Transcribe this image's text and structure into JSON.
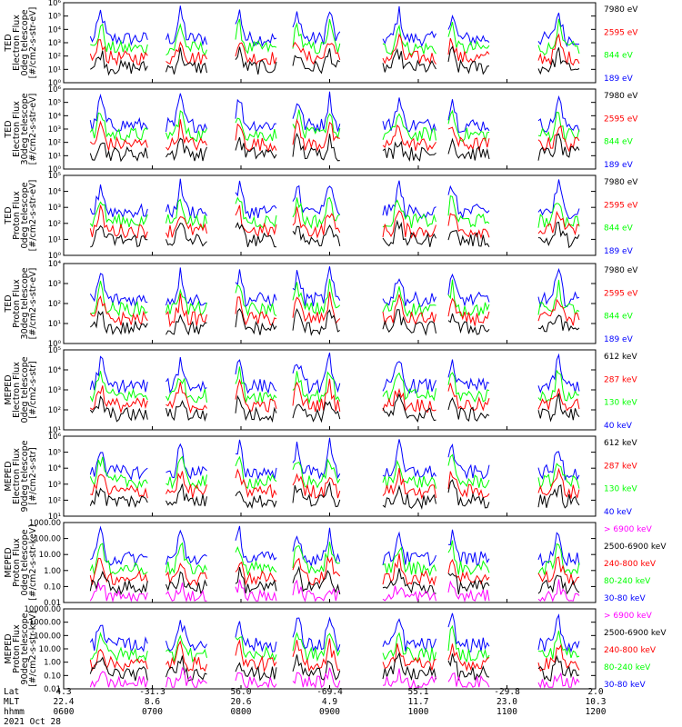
{
  "colors": {
    "blue": "#0000ff",
    "red": "#ff0000",
    "green": "#00ff00",
    "black": "#000000",
    "magenta": "#ff00ff"
  },
  "chart_data": [
    {
      "type": "line",
      "ylabel": [
        "TED",
        "Electron Flux",
        "0deg telescope",
        "[#/cm2-s-str-eV]"
      ],
      "yscale": "log",
      "ylim_exp": [
        0,
        6
      ],
      "ytick_labels": [
        "10⁰",
        "10¹",
        "10²",
        "10³",
        "10⁴",
        "10⁵",
        "10⁶"
      ],
      "legend": [
        {
          "label": "7980 eV",
          "color": "#000000"
        },
        {
          "label": "2595 eV",
          "color": "#ff0000"
        },
        {
          "label": "844 eV",
          "color": "#00ff00"
        },
        {
          "label": "189 eV",
          "color": "#0000ff"
        }
      ]
    },
    {
      "type": "line",
      "ylabel": [
        "TED",
        "Electron Flux",
        "30deg telescope",
        "[#/cm2-s-str-eV]"
      ],
      "yscale": "log",
      "ylim_exp": [
        0,
        6
      ],
      "ytick_labels": [
        "10⁰",
        "10¹",
        "10²",
        "10³",
        "10⁴",
        "10⁵",
        "10⁶"
      ],
      "legend": [
        {
          "label": "7980 eV",
          "color": "#000000"
        },
        {
          "label": "2595 eV",
          "color": "#ff0000"
        },
        {
          "label": "844 eV",
          "color": "#00ff00"
        },
        {
          "label": "189 eV",
          "color": "#0000ff"
        }
      ]
    },
    {
      "type": "line",
      "ylabel": [
        "TED",
        "Proton Flux",
        "0deg telescope",
        "[#/cm2-s-str-eV]"
      ],
      "yscale": "log",
      "ylim_exp": [
        0,
        5
      ],
      "ytick_labels": [
        "10⁰",
        "10¹",
        "10²",
        "10³",
        "10⁴",
        "10⁵"
      ],
      "legend": [
        {
          "label": "7980 eV",
          "color": "#000000"
        },
        {
          "label": "2595 eV",
          "color": "#ff0000"
        },
        {
          "label": "844 eV",
          "color": "#00ff00"
        },
        {
          "label": "189 eV",
          "color": "#0000ff"
        }
      ]
    },
    {
      "type": "line",
      "ylabel": [
        "TED",
        "Proton Flux",
        "30deg telescope",
        "[#/cm2-s-str-eV]"
      ],
      "yscale": "log",
      "ylim_exp": [
        0,
        4
      ],
      "ytick_labels": [
        "10⁰",
        "10¹",
        "10²",
        "10³",
        "10⁴"
      ],
      "legend": [
        {
          "label": "7980 eV",
          "color": "#000000"
        },
        {
          "label": "2595 eV",
          "color": "#ff0000"
        },
        {
          "label": "844 eV",
          "color": "#00ff00"
        },
        {
          "label": "189 eV",
          "color": "#0000ff"
        }
      ]
    },
    {
      "type": "line",
      "ylabel": [
        "MEPED",
        "Electron Flux",
        "0deg telescope",
        "[#/cm2-s-str]"
      ],
      "yscale": "log",
      "ylim_exp": [
        1,
        5
      ],
      "ytick_labels": [
        "10¹",
        "10²",
        "10³",
        "10⁴",
        "10⁵"
      ],
      "legend": [
        {
          "label": "612 keV",
          "color": "#000000"
        },
        {
          "label": "287 keV",
          "color": "#ff0000"
        },
        {
          "label": "130 keV",
          "color": "#00ff00"
        },
        {
          "label": "40 keV",
          "color": "#0000ff"
        }
      ]
    },
    {
      "type": "line",
      "ylabel": [
        "MEPED",
        "Electron Flux",
        "90deg telescope",
        "[#/cm2-s-str]"
      ],
      "yscale": "log",
      "ylim_exp": [
        1,
        6
      ],
      "ytick_labels": [
        "10¹",
        "10²",
        "10³",
        "10⁴",
        "10⁵",
        "10⁶"
      ],
      "legend": [
        {
          "label": "612 keV",
          "color": "#000000"
        },
        {
          "label": "287 keV",
          "color": "#ff0000"
        },
        {
          "label": "130 keV",
          "color": "#00ff00"
        },
        {
          "label": "40 keV",
          "color": "#0000ff"
        }
      ]
    },
    {
      "type": "line",
      "ylabel": [
        "MEPED",
        "Proton Flux",
        "0deg telescope",
        "[#/cm2-s-str-keV]"
      ],
      "yscale": "log",
      "ylim_exp": [
        -2,
        3
      ],
      "ytick_labels": [
        "0.01",
        "0.10",
        "1.00",
        "10.00",
        "100.00",
        "1000.00"
      ],
      "legend": [
        {
          "label": "> 6900 keV",
          "color": "#ff00ff"
        },
        {
          "label": "2500-6900 keV",
          "color": "#000000"
        },
        {
          "label": "240-800 keV",
          "color": "#ff0000"
        },
        {
          "label": "80-240 keV",
          "color": "#00ff00"
        },
        {
          "label": "30-80 keV",
          "color": "#0000ff"
        }
      ]
    },
    {
      "type": "line",
      "ylabel": [
        "MEPED",
        "Proton Flux",
        "90deg telescope",
        "[#/cm2-s-str-keV]"
      ],
      "yscale": "log",
      "ylim_exp": [
        -2,
        4
      ],
      "ytick_labels": [
        "0.01",
        "0.10",
        "1.00",
        "10.00",
        "100.00",
        "1000.00",
        "10000.00"
      ],
      "legend": [
        {
          "label": "> 6900 keV",
          "color": "#ff00ff"
        },
        {
          "label": "2500-6900 keV",
          "color": "#000000"
        },
        {
          "label": "240-800 keV",
          "color": "#ff0000"
        },
        {
          "label": "80-240 keV",
          "color": "#00ff00"
        },
        {
          "label": "30-80 keV",
          "color": "#0000ff"
        }
      ]
    }
  ],
  "footer": {
    "row_labels": [
      "Lat",
      "MLT",
      "hhmm"
    ],
    "date": "2021 Oct 28",
    "columns": [
      {
        "lat": "4.3",
        "mlt": "22.4",
        "hhmm": "0600"
      },
      {
        "lat": "-31.3",
        "mlt": "8.6",
        "hhmm": "0700"
      },
      {
        "lat": "56.0",
        "mlt": "20.6",
        "hhmm": "0800"
      },
      {
        "lat": "-69.4",
        "mlt": "4.9",
        "hhmm": "0900"
      },
      {
        "lat": "55.1",
        "mlt": "11.7",
        "hhmm": "1000"
      },
      {
        "lat": "-29.8",
        "mlt": "23.0",
        "hhmm": "1100"
      },
      {
        "lat": "2.0",
        "mlt": "10.3",
        "hhmm": "1200"
      }
    ]
  }
}
